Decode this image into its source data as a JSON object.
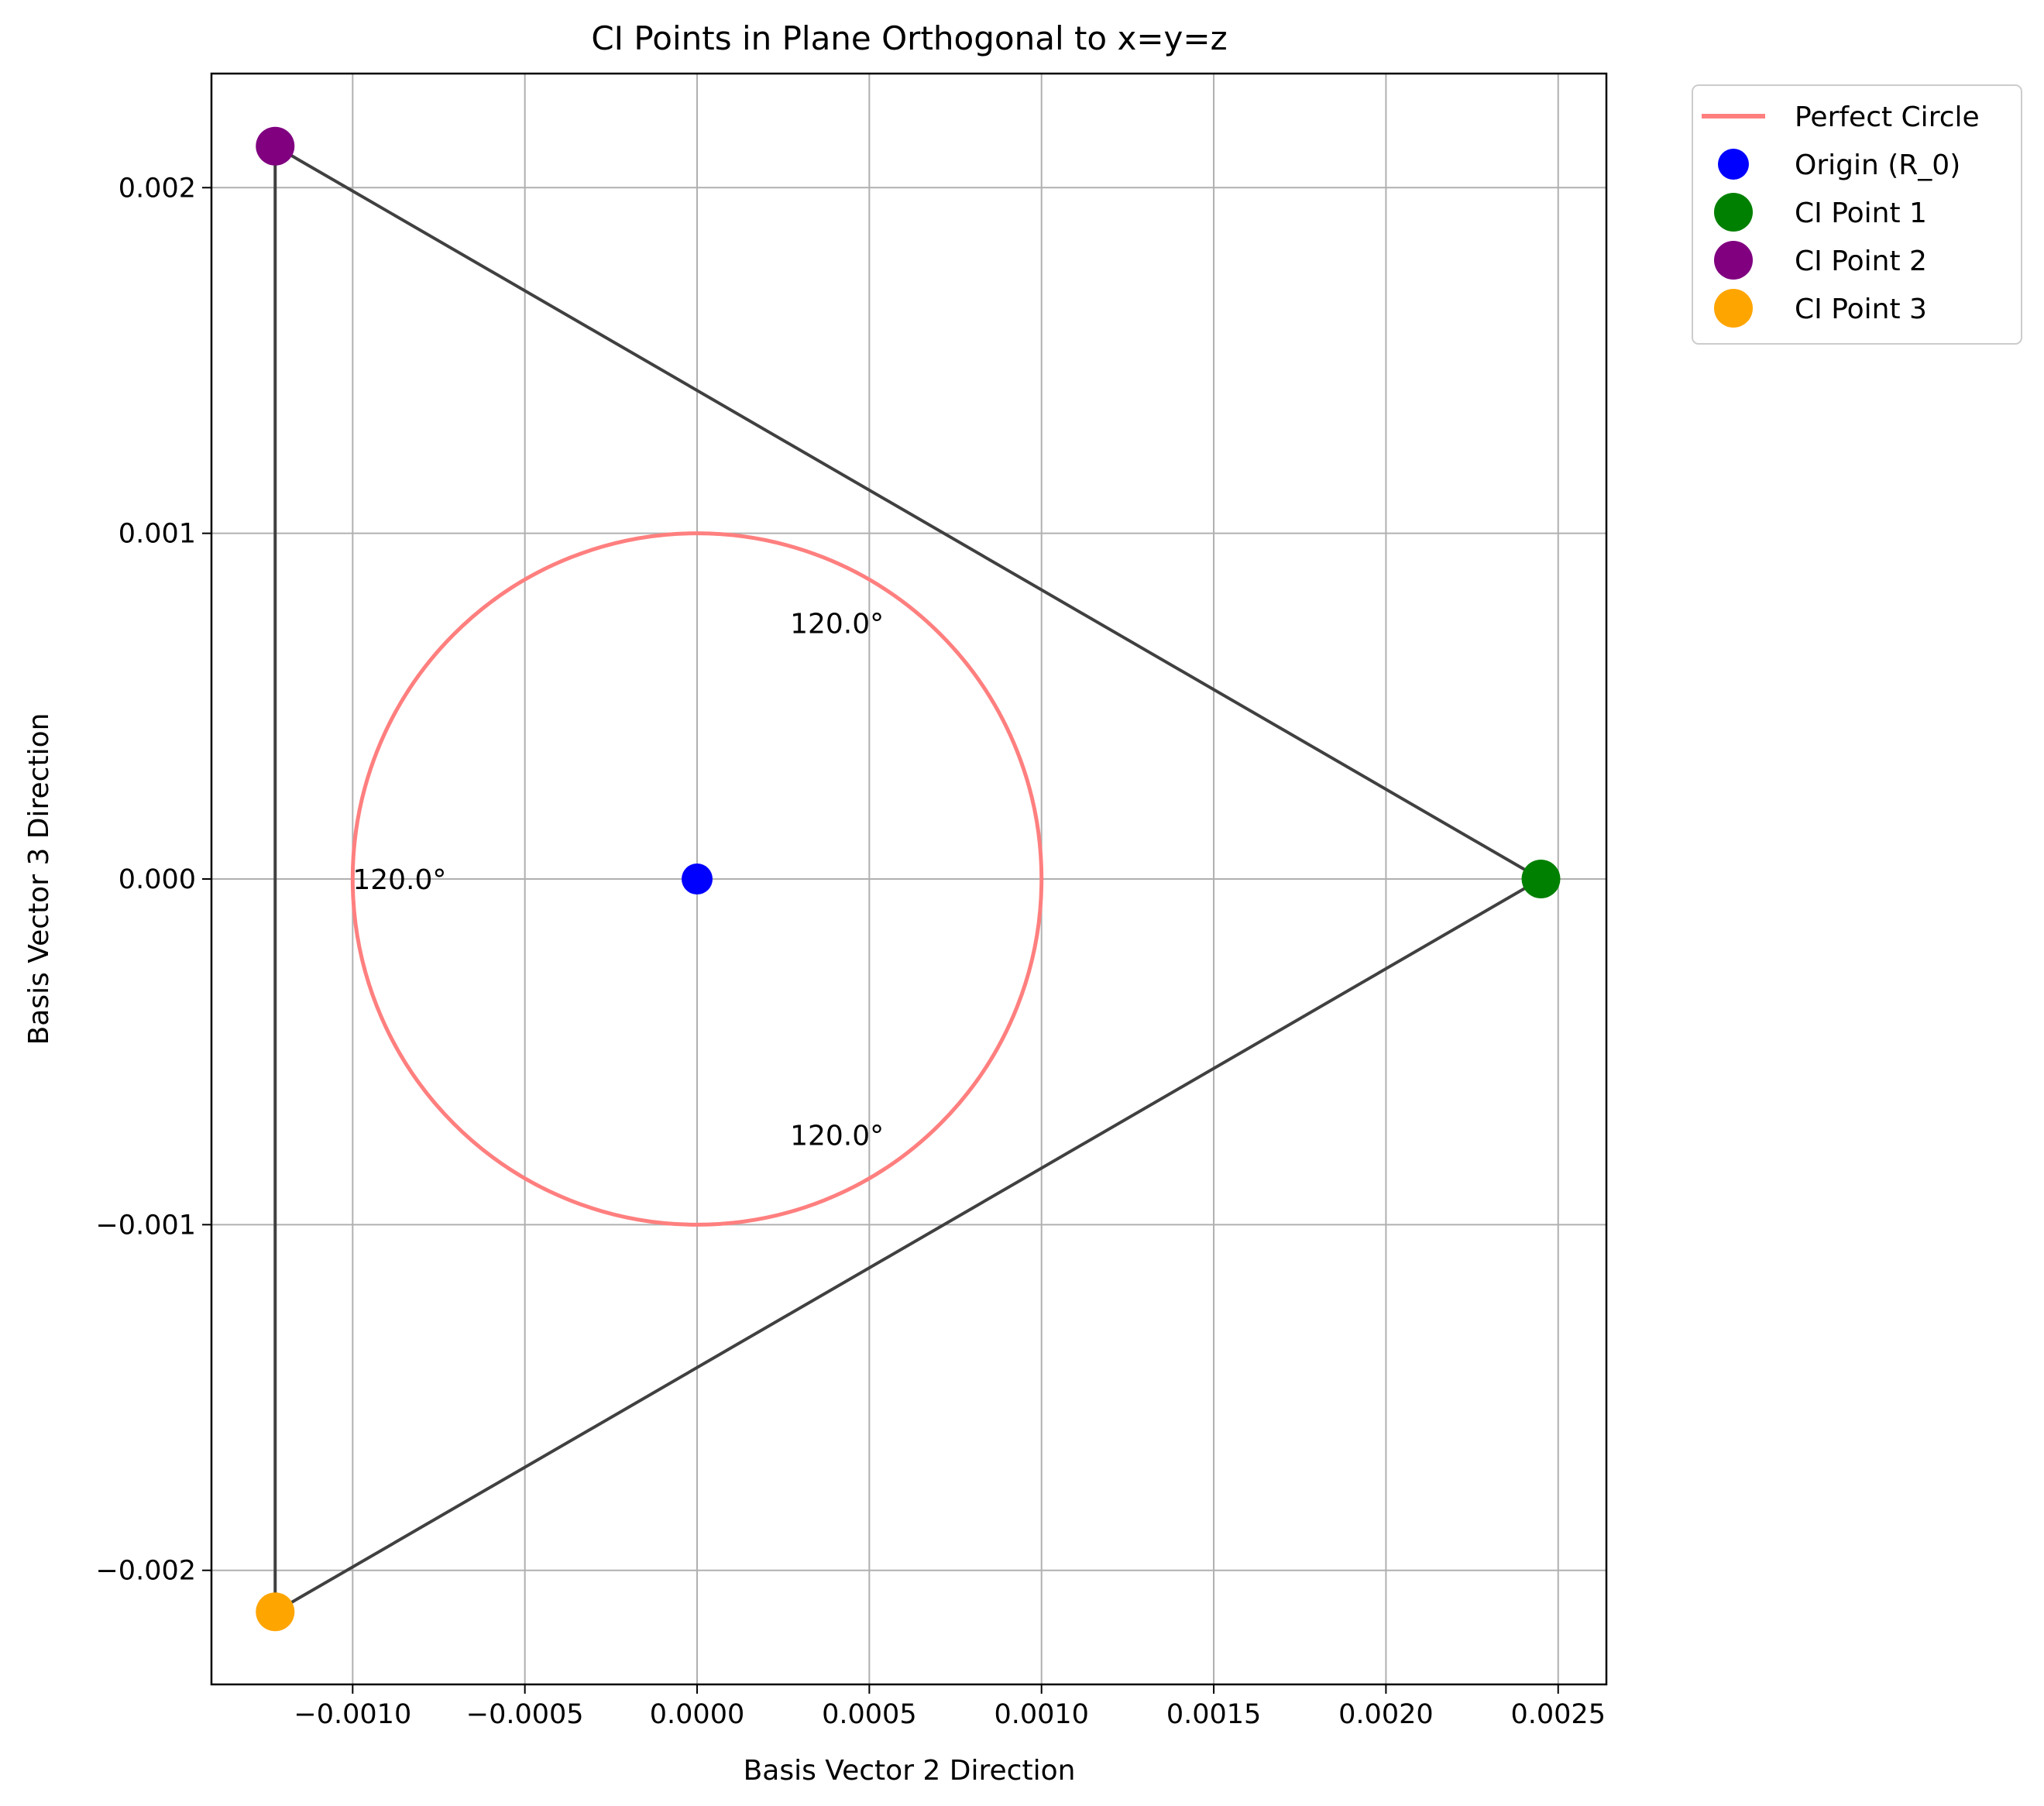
{
  "chart_data": {
    "type": "scatter",
    "title": "CI Points in Plane Orthogonal to x=y=z",
    "xlabel": "Basis Vector 2 Direction",
    "ylabel": "Basis Vector 3 Direction",
    "xlim": [
      -0.00141,
      0.00264
    ],
    "ylim": [
      -0.00233,
      0.00233
    ],
    "xticks": [
      -0.001,
      -0.0005,
      0.0,
      0.0005,
      0.001,
      0.0015,
      0.002,
      0.0025
    ],
    "xtick_labels": [
      "−0.0010",
      "−0.0005",
      "0.0000",
      "0.0005",
      "0.0010",
      "0.0015",
      "0.0020",
      "0.0025"
    ],
    "yticks": [
      -0.002,
      -0.001,
      0.0,
      0.001,
      0.002
    ],
    "ytick_labels": [
      "−0.002",
      "−0.001",
      "0.000",
      "0.001",
      "0.002"
    ],
    "grid": true,
    "legend_placement": "outside top-right",
    "circle": {
      "name": "Perfect Circle",
      "center": [
        0,
        0
      ],
      "radius": 0.001,
      "color": "#ff7f7f"
    },
    "points": [
      {
        "name": "Origin (R_0)",
        "x": 0.0,
        "y": 0.0,
        "color": "#0000ff",
        "size": "small"
      },
      {
        "name": "CI Point 1",
        "x": 0.00245,
        "y": 0.0,
        "color": "#008000",
        "size": "large"
      },
      {
        "name": "CI Point 2",
        "x": -0.001225,
        "y": 0.00212,
        "color": "#800080",
        "size": "large"
      },
      {
        "name": "CI Point 3",
        "x": -0.001225,
        "y": -0.00212,
        "color": "#ffa500",
        "size": "large"
      }
    ],
    "triangle": {
      "vertices": [
        "CI Point 1",
        "CI Point 2",
        "CI Point 3"
      ],
      "color": "#404040"
    },
    "annotations": [
      {
        "text": "120.0°",
        "x": 0.00027,
        "y": 0.00074
      },
      {
        "text": "120.0°",
        "x": -0.001,
        "y": 0.0
      },
      {
        "text": "120.0°",
        "x": 0.00027,
        "y": -0.00074
      }
    ],
    "legend": [
      "Perfect Circle",
      "Origin (R_0)",
      "CI Point 1",
      "CI Point 2",
      "CI Point 3"
    ]
  }
}
